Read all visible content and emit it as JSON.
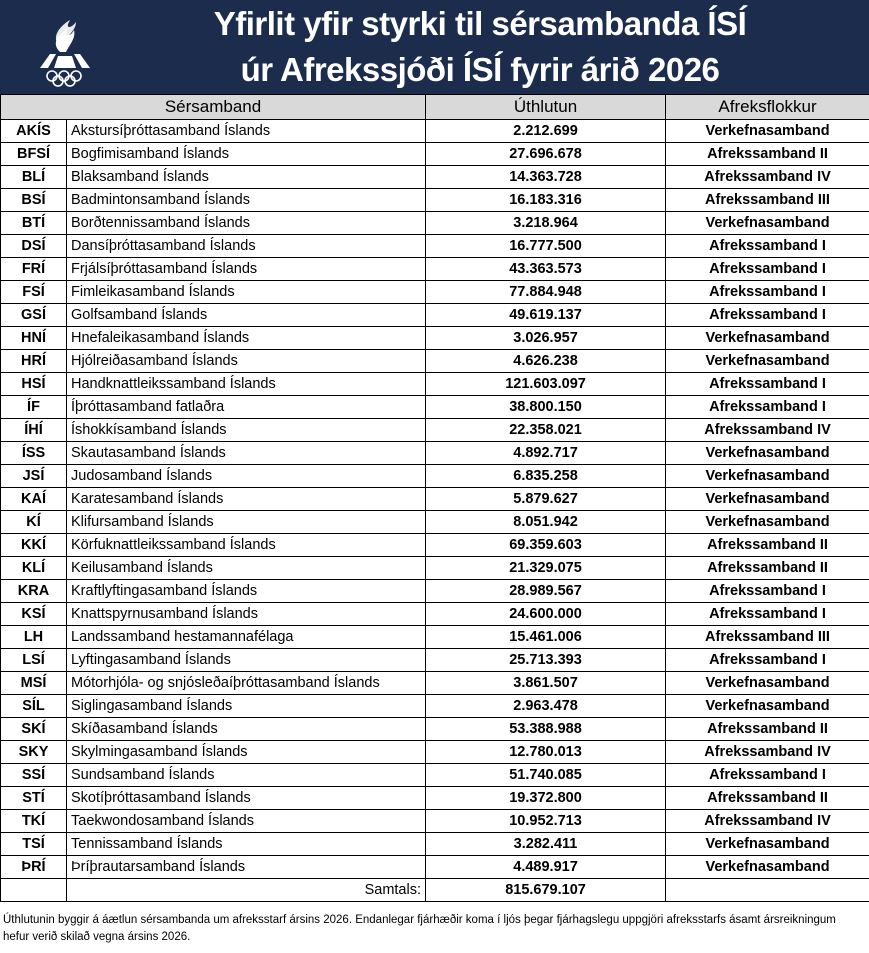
{
  "header": {
    "title_line1": "Yfirlit yfir styrki til sérsambanda ÍSÍ",
    "title_line2": "úr Afrekssjóði ÍSÍ fyrir árið 2026",
    "logo": "ISI-logo",
    "color": "#1c2c4c"
  },
  "columns": [
    "Sérsamband",
    "Úthlutun",
    "Afreksflokkur"
  ],
  "rows": [
    [
      "AKÍS",
      "Akstursíþróttasamband Íslands",
      "2.212.699",
      "Verkefnasamband"
    ],
    [
      "BFSÍ",
      "Bogfimisamband Íslands",
      "27.696.678",
      "Afrekssamband II"
    ],
    [
      "BLÍ",
      "Blaksamband Íslands",
      "14.363.728",
      "Afrekssamband IV"
    ],
    [
      "BSÍ",
      "Badmintonsamband Íslands",
      "16.183.316",
      "Afrekssamband III"
    ],
    [
      "BTÍ",
      "Borðtennissamband Íslands",
      "3.218.964",
      "Verkefnasamband"
    ],
    [
      "DSÍ",
      "Dansíþróttasamband Íslands",
      "16.777.500",
      "Afrekssamband I"
    ],
    [
      "FRÍ",
      "Frjálsíþróttasamband Íslands",
      "43.363.573",
      "Afrekssamband I"
    ],
    [
      "FSÍ",
      "Fimleikasamband Íslands",
      "77.884.948",
      "Afrekssamband I"
    ],
    [
      "GSÍ",
      "Golfsamband Íslands",
      "49.619.137",
      "Afrekssamband I"
    ],
    [
      "HNÍ",
      "Hnefaleikasamband Íslands",
      "3.026.957",
      "Verkefnasamband"
    ],
    [
      "HRÍ",
      "Hjólreiðasamband Íslands",
      "4.626.238",
      "Verkefnasamband"
    ],
    [
      "HSÍ",
      "Handknattleikssamband Íslands",
      "121.603.097",
      "Afrekssamband I"
    ],
    [
      "ÍF",
      "Íþróttasamband fatlaðra",
      "38.800.150",
      "Afrekssamband I"
    ],
    [
      "ÍHÍ",
      "Íshokkísamband Íslands",
      "22.358.021",
      "Afrekssamband IV"
    ],
    [
      "ÍSS",
      "Skautasamband Íslands",
      "4.892.717",
      "Verkefnasamband"
    ],
    [
      "JSÍ",
      "Judosamband Íslands",
      "6.835.258",
      "Verkefnasamband"
    ],
    [
      "KAÍ",
      "Karatesamband Íslands",
      "5.879.627",
      "Verkefnasamband"
    ],
    [
      "KÍ",
      "Klifursamband Íslands",
      "8.051.942",
      "Verkefnasamband"
    ],
    [
      "KKÍ",
      "Körfuknattleikssamband Íslands",
      "69.359.603",
      "Afrekssamband II"
    ],
    [
      "KLÍ",
      "Keilusamband Íslands",
      "21.329.075",
      "Afrekssamband II"
    ],
    [
      "KRA",
      "Kraftlyftingasamband Íslands",
      "28.989.567",
      "Afrekssamband I"
    ],
    [
      "KSÍ",
      "Knattspyrnusamband Íslands",
      "24.600.000",
      "Afrekssamband I"
    ],
    [
      "LH",
      "Landssamband hestamannafélaga",
      "15.461.006",
      "Afrekssamband III"
    ],
    [
      "LSÍ",
      "Lyftingasamband Íslands",
      "25.713.393",
      "Afrekssamband I"
    ],
    [
      "MSÍ",
      "Mótorhjóla- og snjósleðaíþróttasamband Íslands",
      "3.861.507",
      "Verkefnasamband"
    ],
    [
      "SÍL",
      "Siglingasamband Íslands",
      "2.963.478",
      "Verkefnasamband"
    ],
    [
      "SKÍ",
      "Skíðasamband Íslands",
      "53.388.988",
      "Afrekssamband II"
    ],
    [
      "SKY",
      "Skylmingasamband Íslands",
      "12.780.013",
      "Afrekssamband IV"
    ],
    [
      "SSÍ",
      "Sundsamband Íslands",
      "51.740.085",
      "Afrekssamband I"
    ],
    [
      "STÍ",
      "Skotíþróttasamband Íslands",
      "19.372.800",
      "Afrekssamband II"
    ],
    [
      "TKÍ",
      "Taekwondosamband Íslands",
      "10.952.713",
      "Afrekssamband IV"
    ],
    [
      "TSÍ",
      "Tennissamband Íslands",
      "3.282.411",
      "Verkefnasamband"
    ],
    [
      "ÞRÍ",
      "Þríþrautarsamband Íslands",
      "4.489.917",
      "Verkefnasamband"
    ]
  ],
  "total": {
    "label": "Samtals:",
    "value": "815.679.107"
  },
  "footnote": "Úthlutunin byggir á áætlun sérsambanda um afreksstarf ársins 2026. Endanlegar fjárhæðir koma í ljós þegar fjárhagslegu uppgjöri afreksstarfs ásamt ársreikningum hefur verið skilað vegna ársins 2026."
}
